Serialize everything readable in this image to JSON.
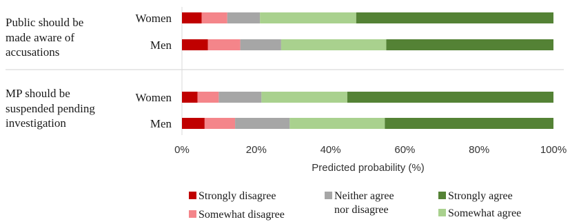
{
  "chart_data": {
    "type": "bar",
    "orientation": "horizontal",
    "stacked": true,
    "xlabel": "Predicted probability (%)",
    "xlim": [
      0,
      100
    ],
    "xticks": [
      0,
      20,
      40,
      60,
      80,
      100
    ],
    "xtick_labels": [
      "0%",
      "20%",
      "40%",
      "60%",
      "80%",
      "100%"
    ],
    "grid": false,
    "legend_position": "bottom",
    "groups": [
      {
        "label": "Public should be made aware of accusations",
        "label_lines": [
          "Public should be",
          "made aware of",
          "accusations"
        ],
        "rows": [
          {
            "label": "Women",
            "values": [
              5.3,
              6.9,
              8.8,
              25.9,
              53.1
            ]
          },
          {
            "label": "Men",
            "values": [
              7.0,
              8.7,
              11.0,
              28.3,
              45.0
            ]
          }
        ]
      },
      {
        "label": "MP should be suspended pending investigation",
        "label_lines": [
          "MP should be",
          "suspended pending",
          "investigation"
        ],
        "rows": [
          {
            "label": "Women",
            "values": [
              4.2,
              5.7,
              11.5,
              23.1,
              55.5
            ]
          },
          {
            "label": "Men",
            "values": [
              6.1,
              8.2,
              14.7,
              25.6,
              45.4
            ]
          }
        ]
      }
    ],
    "series": [
      {
        "name": "Strongly disagree",
        "color": "#c00000"
      },
      {
        "name": "Somewhat disagree",
        "color": "#f4858a"
      },
      {
        "name": "Neither agree nor disagree",
        "name_lines": [
          "Neither agree",
          "nor disagree"
        ],
        "color": "#a6a6a6"
      },
      {
        "name": "Somewhat agree",
        "color": "#a9d18e"
      },
      {
        "name": "Strongly agree",
        "color": "#548235"
      }
    ]
  }
}
